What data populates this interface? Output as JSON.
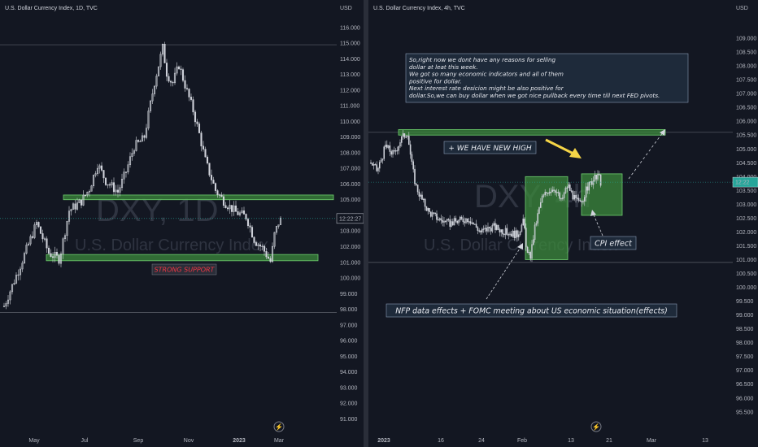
{
  "colors": {
    "background": "#131722",
    "grid": "#2a2e39",
    "candle_up": "#d1d4dc",
    "candle_down": "#d1d4dc",
    "zone_fill": "#3c8a3c",
    "zone_stroke": "#6fcf6f",
    "price_tag": "#26a69a",
    "support_text": "#f23645",
    "arrow_yellow": "#f5d547"
  },
  "chart_data": [
    {
      "type": "candlestick",
      "title": "U.S. Dollar Currency Index, 1D, TVC",
      "watermark_symbol": "DXY, 1D",
      "watermark_name": "U.S. Dollar Currency Index",
      "currency": "USD",
      "ylim": [
        90.5,
        116.2
      ],
      "y_ticks": [
        "116.000",
        "115.000",
        "114.000",
        "113.000",
        "112.000",
        "111.000",
        "110.000",
        "109.000",
        "108.000",
        "107.000",
        "106.000",
        "105.000",
        "104.000",
        "103.000",
        "102.000",
        "101.000",
        "100.000",
        "99.000",
        "98.000",
        "97.000",
        "96.000",
        "95.000",
        "94.000",
        "93.000",
        "92.000",
        "91.000"
      ],
      "x_ticks": [
        "May",
        "Jul",
        "Sep",
        "Nov",
        "2023",
        "Mar"
      ],
      "price_label": "12:22:27",
      "current_price": 103.8,
      "path": [
        [
          0,
          98.2
        ],
        [
          20,
          100.8
        ],
        [
          40,
          103.5
        ],
        [
          55,
          101.6
        ],
        [
          68,
          101.2
        ],
        [
          80,
          104.3
        ],
        [
          95,
          104.9
        ],
        [
          105,
          105.7
        ],
        [
          115,
          107.3
        ],
        [
          125,
          106.2
        ],
        [
          140,
          105.5
        ],
        [
          150,
          106.8
        ],
        [
          160,
          108.4
        ],
        [
          172,
          108.9
        ],
        [
          185,
          112.5
        ],
        [
          195,
          114.7
        ],
        [
          200,
          113.1
        ],
        [
          207,
          112.4
        ],
        [
          215,
          113.6
        ],
        [
          225,
          111.9
        ],
        [
          232,
          110.8
        ],
        [
          240,
          109.2
        ],
        [
          248,
          107.4
        ],
        [
          260,
          105.6
        ],
        [
          272,
          104.8
        ],
        [
          285,
          104.2
        ],
        [
          298,
          103.9
        ],
        [
          308,
          102.4
        ],
        [
          318,
          101.9
        ],
        [
          328,
          101.0
        ],
        [
          332,
          102.7
        ],
        [
          338,
          103.6
        ],
        [
          342,
          103.8
        ]
      ],
      "horizontal_lines": [
        114.9,
        97.8
      ],
      "zones": [
        {
          "name": "resistance-zone",
          "y_low": 105.0,
          "y_high": 105.3
        },
        {
          "name": "support-zone",
          "y_low": 101.1,
          "y_high": 101.5
        }
      ],
      "annotations": [
        {
          "name": "strong-support",
          "text": "STRONG SUPPORT"
        }
      ]
    },
    {
      "type": "candlestick",
      "title": "U.S. Dollar Currency Index, 4h, TVC",
      "watermark_symbol": "DXY, 4h",
      "watermark_name": "U.S. Dollar Currency Index",
      "currency": "USD",
      "ylim": [
        95.2,
        109.5
      ],
      "y_ticks": [
        "109.000",
        "108.500",
        "108.000",
        "107.500",
        "107.000",
        "106.500",
        "106.000",
        "105.500",
        "105.000",
        "104.500",
        "104.000",
        "103.500",
        "103.000",
        "102.500",
        "102.000",
        "101.500",
        "101.000",
        "100.500",
        "100.000",
        "99.500",
        "99.000",
        "98.500",
        "98.000",
        "97.500",
        "97.000",
        "96.500",
        "96.000",
        "95.500"
      ],
      "x_ticks": [
        "2023",
        "16",
        "24",
        "Feb",
        "13",
        "21",
        "Mar",
        "13"
      ],
      "price_label": "12:22",
      "current_price": 103.8,
      "path": [
        [
          0,
          104.5
        ],
        [
          8,
          104.2
        ],
        [
          18,
          105.1
        ],
        [
          28,
          104.8
        ],
        [
          38,
          105.4
        ],
        [
          45,
          105.6
        ],
        [
          50,
          104.5
        ],
        [
          55,
          103.7
        ],
        [
          62,
          103.2
        ],
        [
          72,
          102.7
        ],
        [
          82,
          102.5
        ],
        [
          95,
          102.3
        ],
        [
          108,
          102.4
        ],
        [
          120,
          102.5
        ],
        [
          135,
          102.0
        ],
        [
          150,
          102.2
        ],
        [
          165,
          102.0
        ],
        [
          180,
          101.9
        ],
        [
          188,
          102.4
        ],
        [
          192,
          101.2
        ],
        [
          196,
          101.1
        ],
        [
          202,
          102.2
        ],
        [
          210,
          103.2
        ],
        [
          218,
          103.5
        ],
        [
          226,
          103.6
        ],
        [
          234,
          103.1
        ],
        [
          242,
          103.7
        ],
        [
          250,
          103.2
        ],
        [
          258,
          103.0
        ],
        [
          266,
          103.6
        ],
        [
          274,
          103.9
        ],
        [
          280,
          104.0
        ],
        [
          284,
          103.7
        ]
      ],
      "horizontal_lines": [
        105.6,
        100.9
      ],
      "zones": [
        {
          "name": "top-zone",
          "y_low": 105.5,
          "y_high": 105.7
        },
        {
          "name": "nfp-zone",
          "y_low": 101.0,
          "y_high": 104.0
        },
        {
          "name": "cpi-zone",
          "y_low": 102.6,
          "y_high": 104.1
        }
      ],
      "annotations": [
        {
          "name": "analysis-note",
          "lines": [
            "So,right now we dont have any reasons for selling",
            "dollar at leat this week.",
            "We got so many economic indicators and all of them",
            "positive for dollar.",
            "Next interest rate desicion might be also positive for",
            "dollar.So,we can buy dollar when we got nice pullback every time till next FED pivots."
          ]
        },
        {
          "name": "new-high",
          "text": "+ WE HAVE NEW HIGH"
        },
        {
          "name": "cpi-effect",
          "text": "CPI effect"
        },
        {
          "name": "nfp-effect",
          "text": "NFP data effects + FOMC meeting about US economic situation(effects)"
        }
      ]
    }
  ]
}
